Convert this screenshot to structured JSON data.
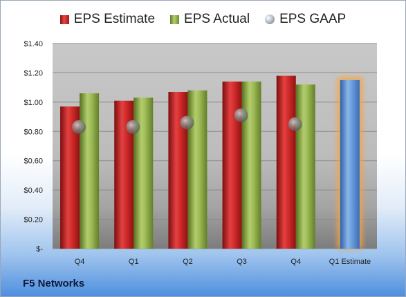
{
  "company": "F5 Networks",
  "legend": {
    "estimate_label": "EPS Estimate",
    "actual_label": "EPS Actual",
    "gaap_label": "EPS GAAP"
  },
  "colors": {
    "estimate": "#c41f1f",
    "actual": "#8aac47",
    "gaap": "#9aa3ad",
    "forecast": "#5b8fd0",
    "forecast_glow": "#f4a43c"
  },
  "chart_data": {
    "type": "bar",
    "categories": [
      "Q4",
      "Q1",
      "Q2",
      "Q3",
      "Q4",
      "Q1 Estimate"
    ],
    "y_tick_labels": [
      "$-",
      "$0.20",
      "$0.40",
      "$0.60",
      "$0.80",
      "$1.00",
      "$1.20",
      "$1.40"
    ],
    "ylim": [
      0,
      1.4
    ],
    "grid": true,
    "legend_position": "top",
    "series": [
      {
        "name": "EPS Estimate",
        "values": [
          0.97,
          1.01,
          1.07,
          1.14,
          1.18,
          null
        ]
      },
      {
        "name": "EPS Actual",
        "values": [
          1.06,
          1.03,
          1.08,
          1.14,
          1.12,
          null
        ]
      },
      {
        "name": "EPS GAAP",
        "values": [
          0.83,
          0.83,
          0.86,
          0.91,
          0.85,
          null
        ]
      }
    ],
    "forecast_value": 1.15
  }
}
